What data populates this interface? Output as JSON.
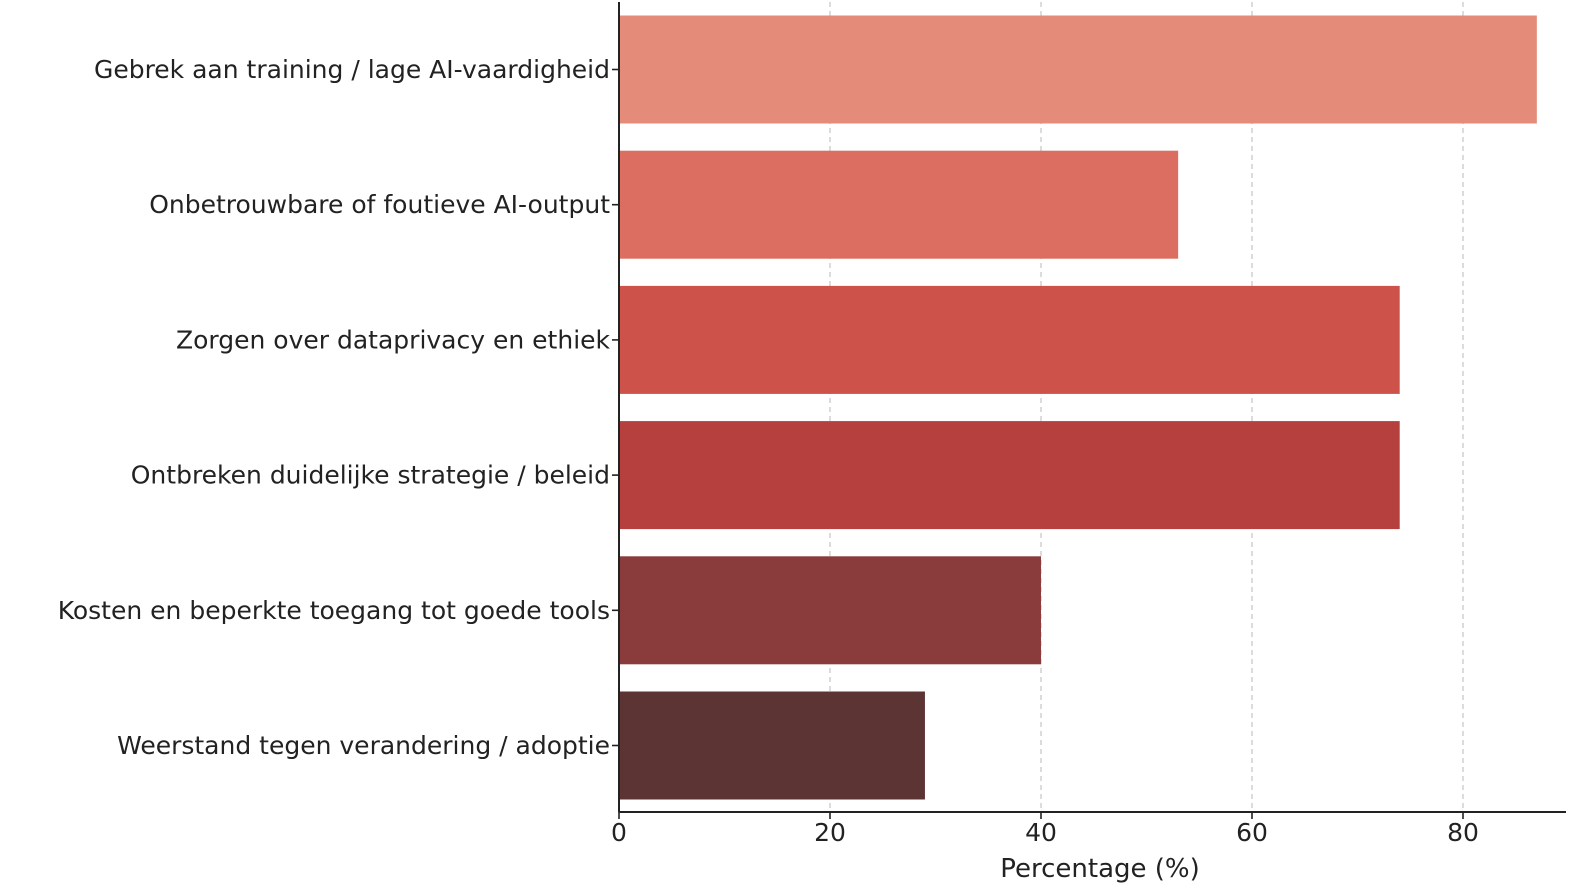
{
  "chart_data": {
    "type": "bar",
    "orientation": "horizontal",
    "categories": [
      "Gebrek aan training / lage AI-vaardigheid",
      "Onbetrouwbare of foutieve AI-output",
      "Zorgen over dataprivacy en ethiek",
      "Ontbreken duidelijke strategie / beleid",
      "Kosten en beperkte toegang tot goede tools",
      "Weerstand tegen verandering / adoptie"
    ],
    "values": [
      87,
      53,
      74,
      74,
      40,
      29
    ],
    "colors": [
      "#e48c79",
      "#db6e61",
      "#cd5249",
      "#b5403d",
      "#8a3b3b",
      "#5d3434"
    ],
    "xlabel": "Percentage (%)",
    "ylabel": "",
    "xlim": [
      0,
      90
    ],
    "xticks": [
      0,
      20,
      40,
      60,
      80
    ],
    "xtick_labels": [
      "0",
      "20",
      "40",
      "60",
      "80"
    ],
    "grid": "vertical-dashed",
    "legend": "none"
  }
}
